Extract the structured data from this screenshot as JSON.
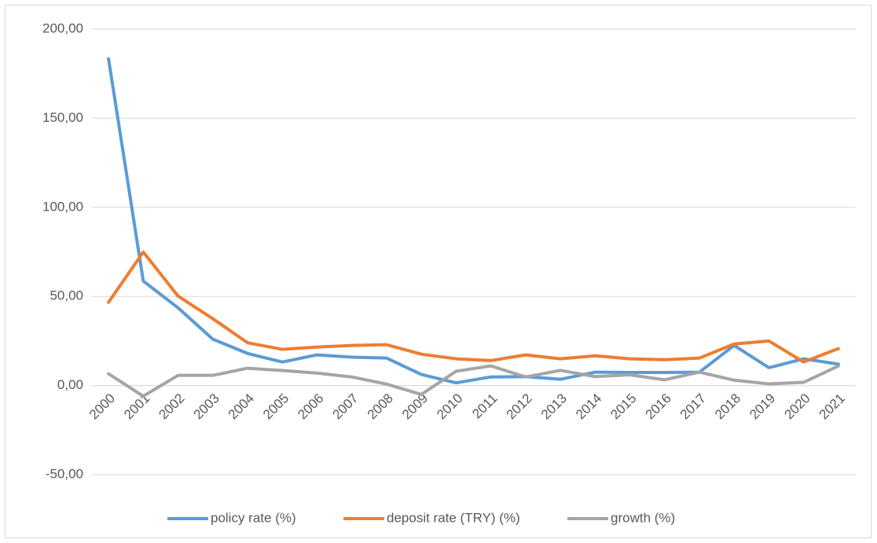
{
  "chart_data": {
    "type": "line",
    "categories": [
      "2000",
      "2001",
      "2002",
      "2003",
      "2004",
      "2005",
      "2006",
      "2007",
      "2008",
      "2009",
      "2010",
      "2011",
      "2012",
      "2013",
      "2014",
      "2015",
      "2016",
      "2017",
      "2018",
      "2019",
      "2020",
      "2021"
    ],
    "series": [
      {
        "name": "policy rate (%)",
        "color": "#5b9bd5",
        "values": [
          183.3,
          58.6,
          43.6,
          26,
          18,
          13.2,
          17.2,
          15.9,
          15.4,
          6.2,
          1.5,
          4.8,
          5,
          3.5,
          7.5,
          7.3,
          7.3,
          7.5,
          22.5,
          10,
          15,
          12
        ]
      },
      {
        "name": "deposit rate (TRY) (%)",
        "color": "#ed7d31",
        "values": [
          46.7,
          74.9,
          50.2,
          37.5,
          24,
          20.3,
          21.6,
          22.5,
          22.9,
          17.6,
          15,
          14,
          17.2,
          15,
          16.7,
          15,
          14.5,
          15.4,
          23.3,
          25,
          13.2,
          20.7
        ]
      },
      {
        "name": "growth (%)",
        "color": "#a5a5a5",
        "values": [
          6.6,
          -6,
          5.7,
          5.7,
          9.7,
          8.4,
          7,
          4.8,
          0.8,
          -5,
          8,
          11,
          4.8,
          8.5,
          5,
          6,
          3.2,
          7.5,
          3,
          0.9,
          1.8,
          11
        ]
      }
    ],
    "ylim": [
      -50,
      200
    ],
    "yticks": [
      {
        "value": -50,
        "label": "-50,00"
      },
      {
        "value": 0,
        "label": "0,00"
      },
      {
        "value": 50,
        "label": "50,00"
      },
      {
        "value": 100,
        "label": "100,00"
      },
      {
        "value": 150,
        "label": "150,00"
      },
      {
        "value": 200,
        "label": "200,00"
      }
    ],
    "grid": true,
    "legend": "bottom"
  }
}
